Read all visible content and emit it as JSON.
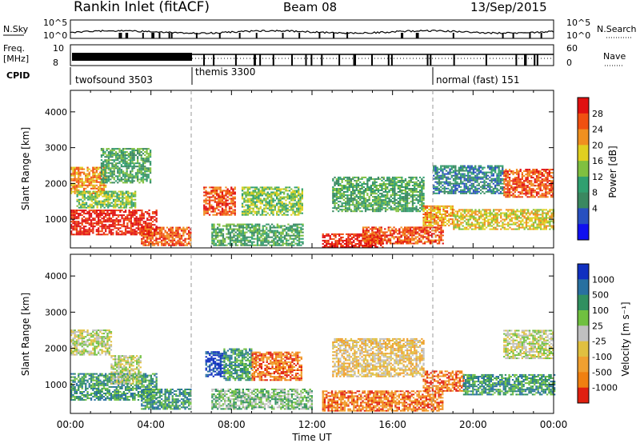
{
  "header": {
    "station": "Rankin Inlet (fitACF)",
    "beam": "Beam 08",
    "date": "13/Sep/2015"
  },
  "status_panels": {
    "nsky_label": "N.Sky",
    "nsky_ticks": [
      "10^5",
      "10^0"
    ],
    "nsearch_label": "N.Search",
    "nsearch_ticks": [
      "10^5",
      "10^0"
    ],
    "freq_label": "Freq.",
    "freq_unit": "[MHz]",
    "freq_ticks": [
      "10",
      "8"
    ],
    "nave_label": "Nave",
    "nave_ticks": [
      "60",
      "0"
    ],
    "cpid_label": "CPID",
    "cpid_modes": [
      {
        "name": "twofsound 3503",
        "start_hour": 0
      },
      {
        "name": "themis 3300",
        "start_hour": 6
      },
      {
        "name": "normal (fast) 151",
        "start_hour": 18
      }
    ]
  },
  "chart_data": [
    {
      "type": "heatmap",
      "name": "power",
      "ylabel": "Slant Range [km]",
      "xlabel": "Time UT",
      "xlim": [
        0,
        24
      ],
      "ylim": [
        200,
        4600
      ],
      "x_ticks": [
        "00:00",
        "04:00",
        "08:00",
        "12:00",
        "16:00",
        "20:00",
        "00:00"
      ],
      "y_ticks": [
        1000,
        2000,
        3000,
        4000
      ],
      "colorbar": {
        "label": "Power [dB]",
        "ticks": [
          "4",
          "8",
          "12",
          "16",
          "20",
          "24",
          "28"
        ],
        "colors": [
          "#1010f0",
          "#2850c0",
          "#3a8860",
          "#30a070",
          "#80c040",
          "#e0d020",
          "#f09020",
          "#f05010",
          "#e01010"
        ]
      },
      "echo_regions": [
        {
          "t0": 0.0,
          "t1": 4.3,
          "r0": 550,
          "r1": 1250,
          "level": 8
        },
        {
          "t0": 0.0,
          "t1": 1.8,
          "r0": 1700,
          "r1": 2450,
          "level": 6
        },
        {
          "t0": 0.3,
          "t1": 3.2,
          "r0": 1300,
          "r1": 1800,
          "level": 4
        },
        {
          "t0": 3.5,
          "t1": 6.0,
          "r0": 250,
          "r1": 800,
          "level": 7
        },
        {
          "t0": 1.5,
          "t1": 4.0,
          "r0": 2000,
          "r1": 3000,
          "level": 3
        },
        {
          "t0": 6.6,
          "t1": 8.2,
          "r0": 1100,
          "r1": 1900,
          "level": 7
        },
        {
          "t0": 8.5,
          "t1": 11.5,
          "r0": 1100,
          "r1": 1900,
          "level": 4
        },
        {
          "t0": 7.0,
          "t1": 11.5,
          "r0": 250,
          "r1": 900,
          "level": 3
        },
        {
          "t0": 12.5,
          "t1": 15.5,
          "r0": 200,
          "r1": 600,
          "level": 8
        },
        {
          "t0": 14.5,
          "t1": 18.5,
          "r0": 300,
          "r1": 800,
          "level": 7
        },
        {
          "t0": 13.0,
          "t1": 17.5,
          "r0": 1200,
          "r1": 2200,
          "level": 3
        },
        {
          "t0": 17.5,
          "t1": 19.0,
          "r0": 800,
          "r1": 1400,
          "level": 6
        },
        {
          "t0": 19.0,
          "t1": 24.0,
          "r0": 700,
          "r1": 1300,
          "level": 5
        },
        {
          "t0": 21.5,
          "t1": 24.0,
          "r0": 1600,
          "r1": 2400,
          "level": 7
        },
        {
          "t0": 18.0,
          "t1": 21.5,
          "r0": 1700,
          "r1": 2500,
          "level": 2
        }
      ]
    },
    {
      "type": "heatmap",
      "name": "velocity",
      "ylabel": "Slant Range [km]",
      "xlabel": "Time UT",
      "xlim": [
        0,
        24
      ],
      "ylim": [
        200,
        4600
      ],
      "x_ticks": [
        "00:00",
        "04:00",
        "08:00",
        "12:00",
        "16:00",
        "20:00",
        "00:00"
      ],
      "y_ticks": [
        1000,
        2000,
        3000,
        4000
      ],
      "colorbar": {
        "label": "Velocity [m s⁻¹]",
        "ticks": [
          "1000",
          "500",
          "100",
          "25",
          "-25",
          "-100",
          "-500",
          "-1000"
        ],
        "colors": [
          "#1030c0",
          "#2870a0",
          "#309060",
          "#70c040",
          "#c0c0c0",
          "#e0c040",
          "#f0a030",
          "#f08010",
          "#e02010"
        ]
      },
      "echo_regions": [
        {
          "t0": 0.0,
          "t1": 4.3,
          "r0": 550,
          "r1": 1300,
          "level": 2
        },
        {
          "t0": 0.0,
          "t1": 2.0,
          "r0": 1800,
          "r1": 2500,
          "level": 4
        },
        {
          "t0": 2.0,
          "t1": 3.5,
          "r0": 1000,
          "r1": 1800,
          "level": 4
        },
        {
          "t0": 3.5,
          "t1": 6.0,
          "r0": 300,
          "r1": 900,
          "level": 2
        },
        {
          "t0": 6.7,
          "t1": 7.6,
          "r0": 1200,
          "r1": 1900,
          "level": 0
        },
        {
          "t0": 7.6,
          "t1": 9.0,
          "r0": 1100,
          "r1": 2000,
          "level": 2
        },
        {
          "t0": 9.0,
          "t1": 11.5,
          "r0": 1100,
          "r1": 1900,
          "level": 7
        },
        {
          "t0": 7.0,
          "t1": 12.0,
          "r0": 300,
          "r1": 900,
          "level": 3
        },
        {
          "t0": 12.5,
          "t1": 18.5,
          "r0": 250,
          "r1": 850,
          "level": 7
        },
        {
          "t0": 17.5,
          "t1": 19.5,
          "r0": 800,
          "r1": 1400,
          "level": 7
        },
        {
          "t0": 19.5,
          "t1": 24.0,
          "r0": 700,
          "r1": 1300,
          "level": 2
        },
        {
          "t0": 21.5,
          "t1": 24.0,
          "r0": 1700,
          "r1": 2500,
          "level": 4
        },
        {
          "t0": 13.0,
          "t1": 17.5,
          "r0": 1200,
          "r1": 2300,
          "level": 5
        }
      ]
    }
  ]
}
